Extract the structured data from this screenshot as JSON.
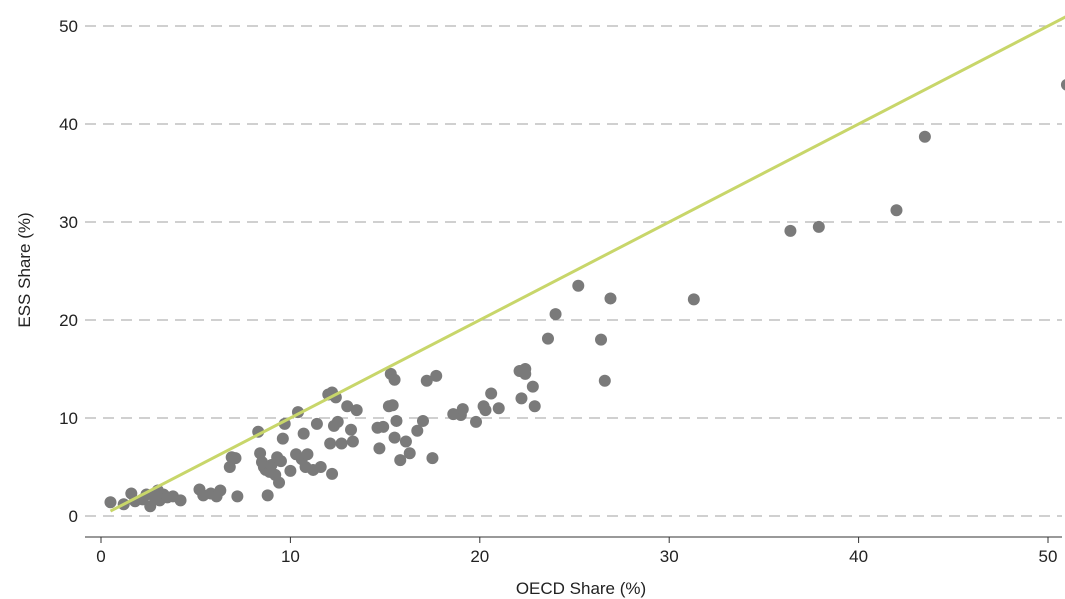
{
  "chart_data": {
    "type": "scatter",
    "title": "",
    "xlabel": "OECD Share (%)",
    "ylabel": "ESS Share (%)",
    "xlim": [
      0,
      51
    ],
    "ylim": [
      0,
      50
    ],
    "xticks": [
      0,
      10,
      20,
      30,
      40,
      50
    ],
    "yticks": [
      0,
      10,
      20,
      30,
      40,
      50
    ],
    "grid": "horizontal dashed",
    "point_color": "#7a7a7a",
    "line_color": "#c8d66a",
    "reference_line": {
      "x": [
        0.5,
        51
      ],
      "y": [
        0.5,
        51
      ]
    },
    "points": [
      [
        0.5,
        1.4
      ],
      [
        1.2,
        1.2
      ],
      [
        1.6,
        2.3
      ],
      [
        1.8,
        1.5
      ],
      [
        2.2,
        1.7
      ],
      [
        2.4,
        2.2
      ],
      [
        2.6,
        1.0
      ],
      [
        2.8,
        2.0
      ],
      [
        3.0,
        2.6
      ],
      [
        3.1,
        1.6
      ],
      [
        3.3,
        2.2
      ],
      [
        3.5,
        1.9
      ],
      [
        3.8,
        2.0
      ],
      [
        4.2,
        1.6
      ],
      [
        5.2,
        2.7
      ],
      [
        5.4,
        2.1
      ],
      [
        5.8,
        2.3
      ],
      [
        6.1,
        2.0
      ],
      [
        6.3,
        2.6
      ],
      [
        6.8,
        5.0
      ],
      [
        6.9,
        6.0
      ],
      [
        7.1,
        5.9
      ],
      [
        7.2,
        2.0
      ],
      [
        8.3,
        8.6
      ],
      [
        8.4,
        6.4
      ],
      [
        8.5,
        5.5
      ],
      [
        8.6,
        5.0
      ],
      [
        8.7,
        4.7
      ],
      [
        8.8,
        2.1
      ],
      [
        8.9,
        4.5
      ],
      [
        9.0,
        5.2
      ],
      [
        9.2,
        4.2
      ],
      [
        9.3,
        6.0
      ],
      [
        9.4,
        3.4
      ],
      [
        9.5,
        5.6
      ],
      [
        9.6,
        7.9
      ],
      [
        9.7,
        9.4
      ],
      [
        10.0,
        4.6
      ],
      [
        10.3,
        6.3
      ],
      [
        10.4,
        10.6
      ],
      [
        10.6,
        5.8
      ],
      [
        10.7,
        8.4
      ],
      [
        10.8,
        5.0
      ],
      [
        10.9,
        6.3
      ],
      [
        11.2,
        4.7
      ],
      [
        11.4,
        9.4
      ],
      [
        11.6,
        5.0
      ],
      [
        12.0,
        12.4
      ],
      [
        12.1,
        7.4
      ],
      [
        12.2,
        12.6
      ],
      [
        12.3,
        9.2
      ],
      [
        12.4,
        12.1
      ],
      [
        12.5,
        9.6
      ],
      [
        12.7,
        7.4
      ],
      [
        12.2,
        4.3
      ],
      [
        13.0,
        11.2
      ],
      [
        13.2,
        8.8
      ],
      [
        13.3,
        7.6
      ],
      [
        13.5,
        10.8
      ],
      [
        14.6,
        9.0
      ],
      [
        14.7,
        6.9
      ],
      [
        14.9,
        9.1
      ],
      [
        15.2,
        11.2
      ],
      [
        15.3,
        14.5
      ],
      [
        15.4,
        11.3
      ],
      [
        15.5,
        13.9
      ],
      [
        15.5,
        8.0
      ],
      [
        15.6,
        9.7
      ],
      [
        15.8,
        5.7
      ],
      [
        16.1,
        7.6
      ],
      [
        16.3,
        6.4
      ],
      [
        16.7,
        8.7
      ],
      [
        17.0,
        9.7
      ],
      [
        17.2,
        13.8
      ],
      [
        17.5,
        5.9
      ],
      [
        17.7,
        14.3
      ],
      [
        18.6,
        10.4
      ],
      [
        19.0,
        10.3
      ],
      [
        19.1,
        10.9
      ],
      [
        19.8,
        9.6
      ],
      [
        20.2,
        11.2
      ],
      [
        20.3,
        10.8
      ],
      [
        20.6,
        12.5
      ],
      [
        21.0,
        11.0
      ],
      [
        22.1,
        14.8
      ],
      [
        22.2,
        12.0
      ],
      [
        22.4,
        15.0
      ],
      [
        22.4,
        14.5
      ],
      [
        22.8,
        13.2
      ],
      [
        22.9,
        11.2
      ],
      [
        23.6,
        18.1
      ],
      [
        24.0,
        20.6
      ],
      [
        25.2,
        23.5
      ],
      [
        26.4,
        18.0
      ],
      [
        26.6,
        13.8
      ],
      [
        26.9,
        22.2
      ],
      [
        31.3,
        22.1
      ],
      [
        36.4,
        29.1
      ],
      [
        37.9,
        29.5
      ],
      [
        42.0,
        31.2
      ],
      [
        43.5,
        38.7
      ],
      [
        51.0,
        44.0
      ]
    ]
  }
}
